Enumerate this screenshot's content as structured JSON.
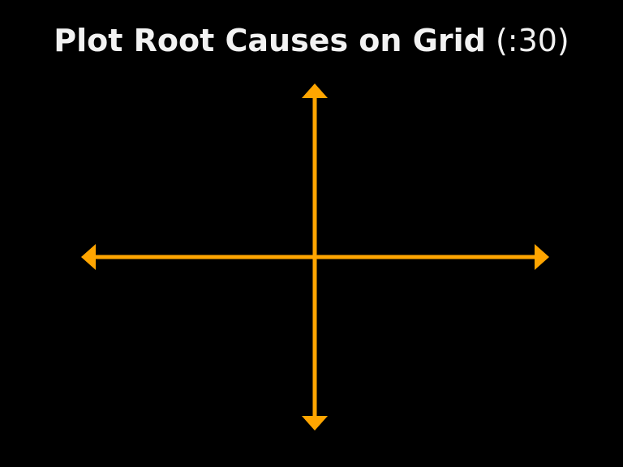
{
  "slide": {
    "title_main": "Plot Root Causes on Grid",
    "title_time": "(:30)"
  },
  "colors": {
    "background": "#000000",
    "title_text": "#f2f2f2",
    "axis": "#ffa500"
  },
  "icons": {
    "arrowheads": [
      "arrow-up-icon",
      "arrow-down-icon",
      "arrow-left-icon",
      "arrow-right-icon"
    ]
  }
}
